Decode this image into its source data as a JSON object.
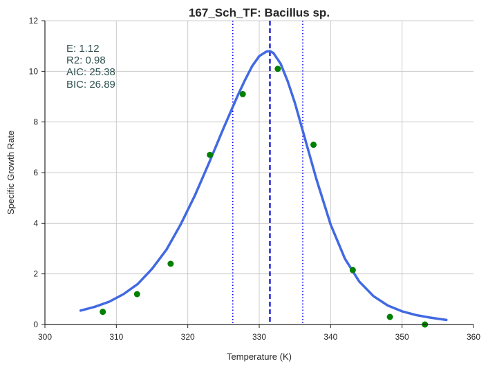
{
  "chart_data": {
    "type": "scatter",
    "title": "167_Sch_TF: Bacillus sp.",
    "xlabel": "Temperature (K)",
    "ylabel": "Specific Growth Rate",
    "xlim": [
      300,
      360
    ],
    "ylim": [
      0,
      12
    ],
    "xticks": [
      "300",
      "310",
      "320",
      "330",
      "340",
      "350",
      "360"
    ],
    "yticks": [
      "0",
      "2",
      "4",
      "6",
      "8",
      "10",
      "12"
    ],
    "grid": true,
    "annotations": [
      "E:  1.12",
      "R2:  0.98",
      "AIC: 25.38",
      "BIC: 26.89"
    ],
    "series": [
      {
        "kind": "points",
        "color": "#008000",
        "x": [
          308.1,
          312.9,
          317.6,
          323.1,
          327.7,
          332.6,
          337.6,
          343.1,
          348.3,
          353.2
        ],
        "y": [
          0.5,
          1.2,
          2.4,
          6.7,
          9.1,
          10.1,
          7.1,
          2.15,
          0.3,
          0.0
        ]
      },
      {
        "kind": "fitted-curve",
        "color": "#4169e1",
        "x": [
          305,
          307,
          309,
          311,
          313,
          315,
          317,
          319,
          321,
          323,
          325,
          327,
          328,
          329,
          330,
          331,
          331.5,
          332,
          333,
          334,
          335,
          336,
          338,
          340,
          342,
          344,
          346,
          348,
          350,
          352,
          354,
          356.2
        ],
        "y": [
          0.55,
          0.7,
          0.9,
          1.2,
          1.6,
          2.2,
          2.95,
          3.95,
          5.1,
          6.4,
          7.75,
          9.05,
          9.65,
          10.2,
          10.6,
          10.78,
          10.8,
          10.72,
          10.3,
          9.6,
          8.75,
          7.75,
          5.75,
          3.95,
          2.6,
          1.7,
          1.12,
          0.75,
          0.52,
          0.37,
          0.27,
          0.18
        ]
      }
    ],
    "vlines": [
      {
        "x": 326.3,
        "style": "dotted",
        "color": "#0000ff"
      },
      {
        "x": 331.5,
        "style": "dashed",
        "color": "#0000cd"
      },
      {
        "x": 336.1,
        "style": "dotted",
        "color": "#0000ff"
      }
    ]
  }
}
